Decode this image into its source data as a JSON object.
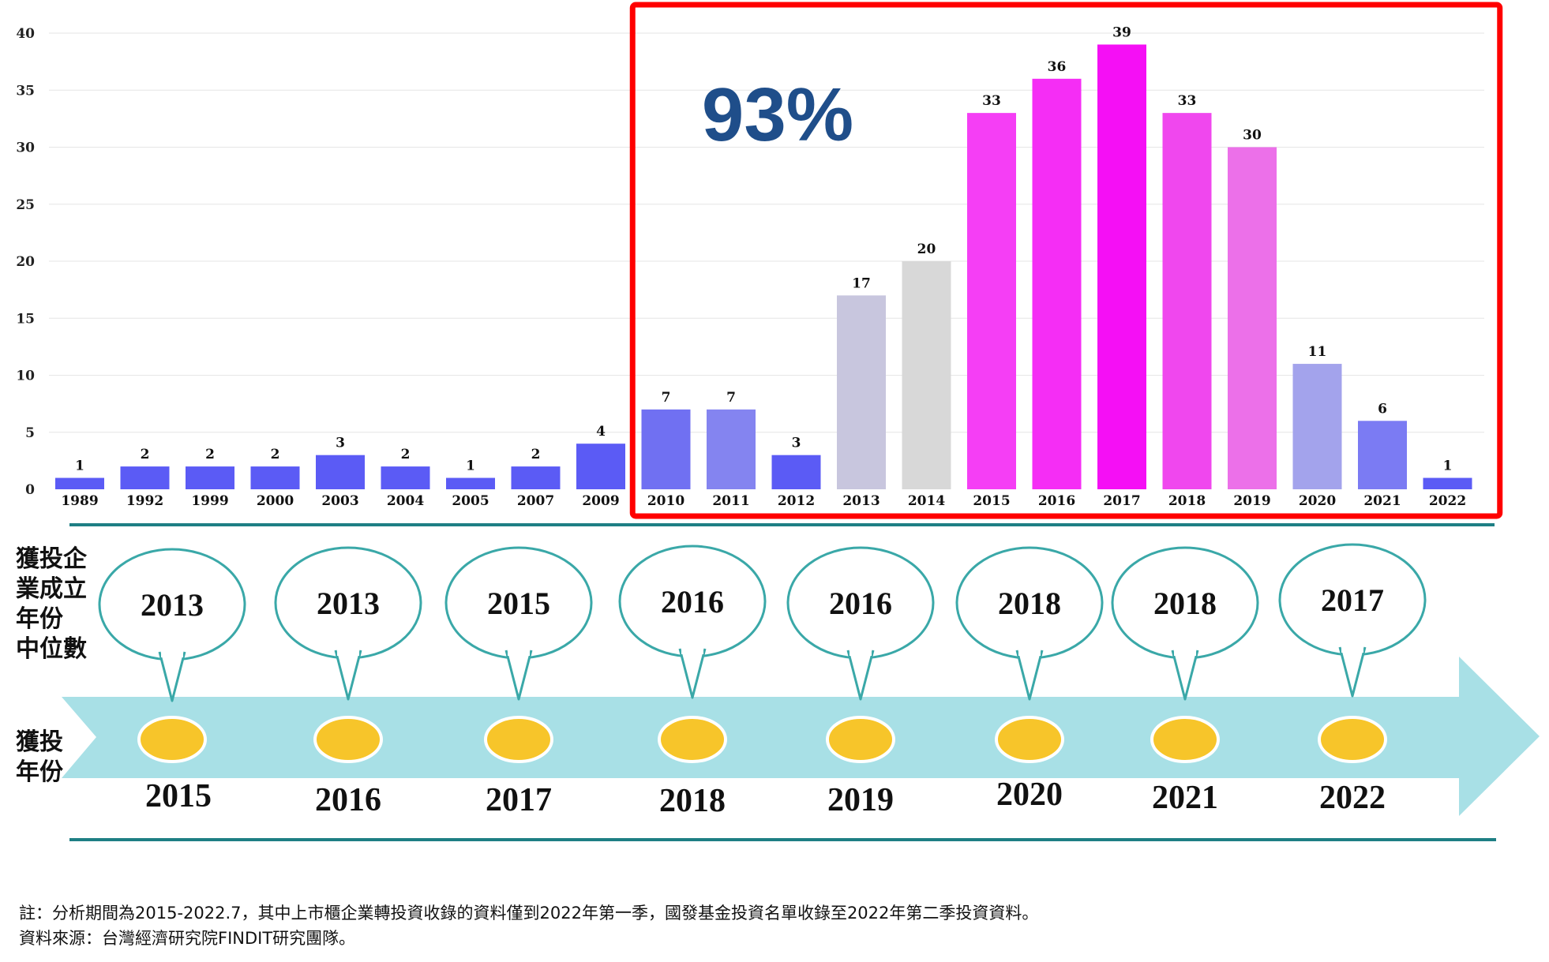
{
  "chart_data": {
    "type": "bar",
    "categories": [
      "1989",
      "1992",
      "1999",
      "2000",
      "2003",
      "2004",
      "2005",
      "2007",
      "2009",
      "2010",
      "2011",
      "2012",
      "2013",
      "2014",
      "2015",
      "2016",
      "2017",
      "2018",
      "2019",
      "2020",
      "2021",
      "2022"
    ],
    "values": [
      1,
      2,
      2,
      2,
      3,
      2,
      1,
      2,
      4,
      7,
      7,
      3,
      17,
      20,
      33,
      36,
      39,
      33,
      30,
      11,
      6,
      1
    ],
    "ylim": [
      0,
      40
    ],
    "yticks": [
      0,
      5,
      10,
      15,
      20,
      25,
      30,
      35,
      40
    ],
    "grid": true,
    "colors": [
      "#5b5bf5",
      "#5b5bf5",
      "#5b5bf5",
      "#5b5bf5",
      "#5b5bf5",
      "#5b5bf5",
      "#5b5bf5",
      "#5b5bf5",
      "#5b5bf5",
      "#7070f2",
      "#8484f0",
      "#5b5bf5",
      "#c8c6de",
      "#d8d8d8",
      "#f53ef5",
      "#f52df5",
      "#f50ff5",
      "#f047ee",
      "#ec70e9",
      "#a3a3ec",
      "#7b7bf3",
      "#5b5bf5"
    ],
    "highlight_range": [
      "2010",
      "2022"
    ],
    "highlight_color": "#ff0000",
    "highlight_text": "93%"
  },
  "timeline": {
    "median_label": "獲投企\n業成立\n年份\n中位數",
    "year_label": "獲投\n年份",
    "medians": [
      "2013",
      "2013",
      "2015",
      "2016",
      "2016",
      "2018",
      "2018",
      "2017"
    ],
    "years": [
      "2015",
      "2016",
      "2017",
      "2018",
      "2019",
      "2020",
      "2021",
      "2022"
    ],
    "arrow_color": "#a8e0e6",
    "bubble_border_color": "#3aa8a8",
    "dot_color": "#f7c52a"
  },
  "notes": {
    "line1": "註：分析期間為2015-2022.7，其中上市櫃企業轉投資收錄的資料僅到2022年第一季，國發基金投資名單收錄至2022年第二季投資資料。",
    "line2": "資料來源：台灣經濟研究院FINDIT研究團隊。"
  }
}
